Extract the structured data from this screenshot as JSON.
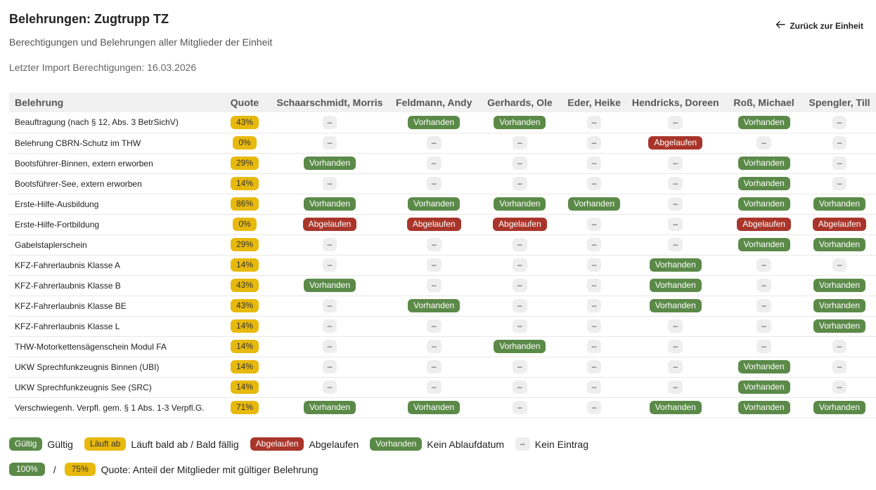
{
  "header": {
    "title": "Belehrungen: Zugtrupp TZ",
    "subtitle": "Berechtigungen und Belehrungen aller Mitglieder der Einheit",
    "last_import": "Letzter Import Berechtigungen: 16.03.2026",
    "back_label": "Zurück zur Einheit"
  },
  "status_labels": {
    "V": "Vorhanden",
    "A": "Abgelaufen",
    "N": "–"
  },
  "colors": {
    "valid": "#5b8a48",
    "expired": "#a9352a",
    "warning": "#e8b90d",
    "empty": "#eeeeee"
  },
  "table": {
    "col_name": "Belehrung",
    "col_quote": "Quote",
    "members": [
      "Schaarschmidt, Morris",
      "Feldmann, Andy",
      "Gerhards, Ole",
      "Eder, Heike",
      "Hendricks, Doreen",
      "Roß, Michael",
      "Spengler, Till"
    ],
    "rows": [
      {
        "name": "Beauftragung (nach § 12, Abs. 3 BetrSichV)",
        "quote": "43%",
        "cells": [
          "N",
          "V",
          "V",
          "N",
          "N",
          "V",
          "N"
        ]
      },
      {
        "name": "Belehrung CBRN-Schutz im THW",
        "quote": "0%",
        "cells": [
          "N",
          "N",
          "N",
          "N",
          "A",
          "N",
          "N"
        ]
      },
      {
        "name": "Bootsführer-Binnen, extern erworben",
        "quote": "29%",
        "cells": [
          "V",
          "N",
          "N",
          "N",
          "N",
          "V",
          "N"
        ]
      },
      {
        "name": "Bootsführer-See, extern erworben",
        "quote": "14%",
        "cells": [
          "N",
          "N",
          "N",
          "N",
          "N",
          "V",
          "N"
        ]
      },
      {
        "name": "Erste-Hilfe-Ausbildung",
        "quote": "86%",
        "cells": [
          "V",
          "V",
          "V",
          "V",
          "N",
          "V",
          "V"
        ]
      },
      {
        "name": "Erste-Hilfe-Fortbildung",
        "quote": "0%",
        "cells": [
          "A",
          "A",
          "A",
          "N",
          "N",
          "A",
          "A"
        ]
      },
      {
        "name": "Gabelstaplerschein",
        "quote": "29%",
        "cells": [
          "N",
          "N",
          "N",
          "N",
          "N",
          "V",
          "V"
        ]
      },
      {
        "name": "KFZ-Fahrerlaubnis Klasse A",
        "quote": "14%",
        "cells": [
          "N",
          "N",
          "N",
          "N",
          "V",
          "N",
          "N"
        ]
      },
      {
        "name": "KFZ-Fahrerlaubnis Klasse B",
        "quote": "43%",
        "cells": [
          "V",
          "N",
          "N",
          "N",
          "V",
          "N",
          "V"
        ]
      },
      {
        "name": "KFZ-Fahrerlaubnis Klasse BE",
        "quote": "43%",
        "cells": [
          "N",
          "V",
          "N",
          "N",
          "V",
          "N",
          "V"
        ]
      },
      {
        "name": "KFZ-Fahrerlaubnis Klasse L",
        "quote": "14%",
        "cells": [
          "N",
          "N",
          "N",
          "N",
          "N",
          "N",
          "V"
        ]
      },
      {
        "name": "THW-Motorkettensägenschein Modul FA",
        "quote": "14%",
        "cells": [
          "N",
          "N",
          "V",
          "N",
          "N",
          "N",
          "N"
        ]
      },
      {
        "name": "UKW Sprechfunkzeugnis Binnen (UBI)",
        "quote": "14%",
        "cells": [
          "N",
          "N",
          "N",
          "N",
          "N",
          "V",
          "N"
        ]
      },
      {
        "name": "UKW Sprechfunkzeugnis See (SRC)",
        "quote": "14%",
        "cells": [
          "N",
          "N",
          "N",
          "N",
          "N",
          "V",
          "N"
        ]
      },
      {
        "name": "Verschwiegenh. Verpfl. gem. § 1 Abs. 1-3 Verpfl.G.",
        "quote": "71%",
        "cells": [
          "V",
          "V",
          "N",
          "N",
          "V",
          "V",
          "V"
        ]
      }
    ]
  },
  "legend": [
    {
      "badge": "Gültig",
      "style": "ok",
      "text": "Gültig"
    },
    {
      "badge": "Läuft ab",
      "style": "warn",
      "text": "Läuft bald ab / Bald fällig"
    },
    {
      "badge": "Abgelaufen",
      "style": "exp",
      "text": "Abgelaufen"
    },
    {
      "badge": "Vorhanden",
      "style": "ok",
      "text": "Kein Ablaufdatum"
    },
    {
      "badge": "–",
      "style": "none",
      "text": "Kein Eintrag"
    }
  ],
  "quote_legend": {
    "full": "100%",
    "partial": "75%",
    "separator": "/",
    "text": "Quote: Anteil der Mitglieder mit gültiger Belehrung"
  }
}
